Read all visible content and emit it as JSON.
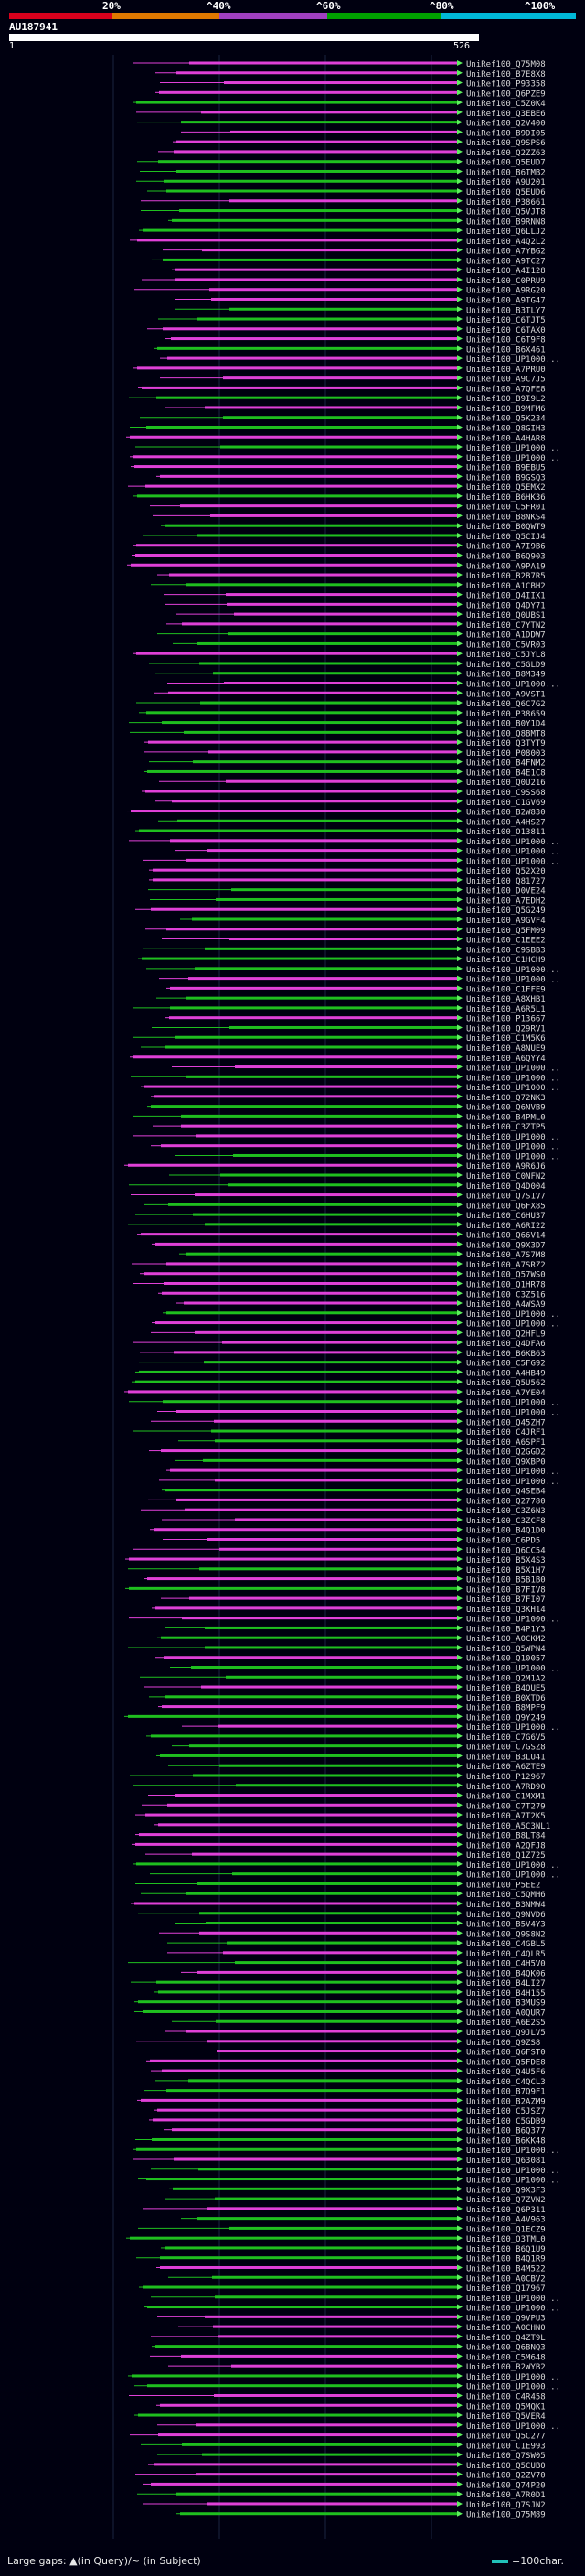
{
  "header": {
    "color_ticks": [
      "20%",
      "^40%",
      "^60%",
      "^80%",
      "^100%"
    ],
    "color_bands": [
      "#d8001c",
      "#e07800",
      "#a040c0",
      "#00a000",
      "#00b8d8"
    ],
    "query_label": "AU187941",
    "query_start": "1",
    "query_end": "526"
  },
  "footer": {
    "gap_legend": "Large gaps: ▲(in Query)/~ (in Subject)",
    "scale_legend": "=100char."
  },
  "colors": {
    "green": "#1fbf1f",
    "magenta": "#e040d8",
    "arrow_green": "#5ef05e",
    "text": "#d8d8d8",
    "background": "#000010"
  },
  "hits": [
    "UniRef100_Q75M08",
    "UniRef100_B7E8X8",
    "UniRef100_P93358",
    "UniRef100_Q6PZE9",
    "UniRef100_C5Z0K4",
    "UniRef100_Q3EBE6",
    "UniRef100_Q2V400",
    "UniRef100_B9DI05",
    "UniRef100_Q9SPS6",
    "UniRef100_Q2ZZ63",
    "UniRef100_Q5EUD7",
    "UniRef100_B6TMB2",
    "UniRef100_A9U201",
    "UniRef100_Q5EUD6",
    "UniRef100_P38661",
    "UniRef100_Q5VJT8",
    "UniRef100_B9RNN8",
    "UniRef100_Q6LLJ2",
    "UniRef100_A4Q2L2",
    "UniRef100_A7YBG2",
    "UniRef100_A9TC27",
    "UniRef100_A4I128",
    "UniRef100_C0PRU9",
    "UniRef100_A9RG20",
    "UniRef100_A9TG47",
    "UniRef100_B3TLY7",
    "UniRef100_C6TJT5",
    "UniRef100_C6TAX0",
    "UniRef100_C6T9F8",
    "UniRef100_B6X461",
    "UniRef100_UP1000...",
    "UniRef100_A7PRU0",
    "UniRef100_A9C7J5",
    "UniRef100_A7QFE8",
    "UniRef100_B9I9L2",
    "UniRef100_B9MFM6",
    "UniRef100_Q5K234",
    "UniRef100_Q8GIH3",
    "UniRef100_A4HAR8",
    "UniRef100_UP1000...",
    "UniRef100_UP1000...",
    "UniRef100_B9EBU5",
    "UniRef100_B9GSQ3",
    "UniRef100_Q5EMX2",
    "UniRef100_B6HK36",
    "UniRef100_C5FR01",
    "UniRef100_B8NKS4",
    "UniRef100_B0QWT9",
    "UniRef100_Q5CIJ4",
    "UniRef100_A7I9B6",
    "UniRef100_B6Q903",
    "UniRef100_A9PA19",
    "UniRef100_B2B7R5",
    "UniRef100_A1CBH2",
    "UniRef100_Q4IIX1",
    "UniRef100_Q4DY71",
    "UniRef100_Q0UBS1",
    "UniRef100_C7YTN2",
    "UniRef100_A1DDW7",
    "UniRef100_C5VR03",
    "UniRef100_C5JYL8",
    "UniRef100_C5GLD9",
    "UniRef100_B8M349",
    "UniRef100_UP1000...",
    "UniRef100_A9VST1",
    "UniRef100_Q6C7G2",
    "UniRef100_P38659",
    "UniRef100_B0Y1D4",
    "UniRef100_Q8BMT8",
    "UniRef100_Q3TYT9",
    "UniRef100_P08003",
    "UniRef100_B4FNM2",
    "UniRef100_B4E1C8",
    "UniRef100_Q0U216",
    "UniRef100_C9SS68",
    "UniRef100_C1GV69",
    "UniRef100_B2W830",
    "UniRef100_A4HS27",
    "UniRef100_O13811",
    "UniRef100_UP1000...",
    "UniRef100_UP1000...",
    "UniRef100_UP1000...",
    "UniRef100_Q52X20",
    "UniRef100_Q81727",
    "UniRef100_D0VE24",
    "UniRef100_A7EDH2",
    "UniRef100_Q5G249",
    "UniRef100_A9GVF4",
    "UniRef100_Q5FM09",
    "UniRef100_C1EEE2",
    "UniRef100_C9SBB3",
    "UniRef100_C1HCH9",
    "UniRef100_UP1000...",
    "UniRef100_UP1000...",
    "UniRef100_C1FFE9",
    "UniRef100_A8XHB1",
    "UniRef100_A6R5L1",
    "UniRef100_P13667",
    "UniRef100_Q29RV1",
    "UniRef100_C1M5K6",
    "UniRef100_A8NUE9",
    "UniRef100_A6QYY4",
    "UniRef100_UP1000...",
    "UniRef100_UP1000...",
    "UniRef100_UP1000...",
    "UniRef100_Q72NK3",
    "UniRef100_Q6NVB9",
    "UniRef100_B4PML0",
    "UniRef100_C3ZTP5",
    "UniRef100_UP1000...",
    "UniRef100_UP1000...",
    "UniRef100_UP1000...",
    "UniRef100_A9R6J6",
    "UniRef100_C0NFN2",
    "UniRef100_Q4D004",
    "UniRef100_Q7S1V7",
    "UniRef100_Q6FX85",
    "UniRef100_C6HU37",
    "UniRef100_A6RI22",
    "UniRef100_Q66V14",
    "UniRef100_Q9X3D7",
    "UniRef100_A7S7M8",
    "UniRef100_A7SRZ2",
    "UniRef100_Q57WS0",
    "UniRef100_Q1HR78",
    "UniRef100_C3Z516",
    "UniRef100_A4WSA9",
    "UniRef100_UP1000...",
    "UniRef100_UP1000...",
    "UniRef100_Q2HFL9",
    "UniRef100_Q4DFA6",
    "UniRef100_B6KB63",
    "UniRef100_C5FG92",
    "UniRef100_A4HB49",
    "UniRef100_Q5U562",
    "UniRef100_A7YE04",
    "UniRef100_UP1000...",
    "UniRef100_UP1000...",
    "UniRef100_Q45ZH7",
    "UniRef100_C4JRF1",
    "UniRef100_A6SPF1",
    "UniRef100_Q2GGD2",
    "UniRef100_Q9XBP0",
    "UniRef100_UP1000...",
    "UniRef100_UP1000...",
    "UniRef100_Q4SEB4",
    "UniRef100_Q27780",
    "UniRef100_C3Z6N3",
    "UniRef100_C3ZCF8",
    "UniRef100_B4Q1D0",
    "UniRef100_C6PD5",
    "UniRef100_Q6CC54",
    "UniRef100_B5X4S3",
    "UniRef100_B5X1H7",
    "UniRef100_B5B1B0",
    "UniRef100_B7FIV8",
    "UniRef100_B7FI07",
    "UniRef100_Q3KH14",
    "UniRef100_UP1000...",
    "UniRef100_B4P1Y3",
    "UniRef100_A0CKM2",
    "UniRef100_Q5WPN4",
    "UniRef100_Q10057",
    "UniRef100_UP1000...",
    "UniRef100_Q2M1A2",
    "UniRef100_B4QUE5",
    "UniRef100_B0XTD6",
    "UniRef100_B8MPF9",
    "UniRef100_Q9Y249",
    "UniRef100_UP1000...",
    "UniRef100_C7G6V5",
    "UniRef100_C7GSZ8",
    "UniRef100_B3LU41",
    "UniRef100_A6ZTE9",
    "UniRef100_P12967",
    "UniRef100_A7RD90",
    "UniRef100_C1MXM1",
    "UniRef100_C7T279",
    "UniRef100_A7T2K5",
    "UniRef100_A5C3NL1",
    "UniRef100_B8LT84",
    "UniRef100_A2QFJ8",
    "UniRef100_Q1Z725",
    "UniRef100_UP1000...",
    "UniRef100_UP1000...",
    "UniRef100_P5EE2",
    "UniRef100_C5QMH6",
    "UniRef100_B3NMW4",
    "UniRef100_Q9NVD6",
    "UniRef100_B5V4Y3",
    "UniRef100_Q9S8N2",
    "UniRef100_C4GBL5",
    "UniRef100_C4QLR5",
    "UniRef100_C4H5V0",
    "UniRef100_B4QK06",
    "UniRef100_B4LI27",
    "UniRef100_B4H155",
    "UniRef100_B3MUS9",
    "UniRef100_A0QUR7",
    "UniRef100_A6E2S5",
    "UniRef100_Q9JLV5",
    "UniRef100_Q9ZS8",
    "UniRef100_Q6FST0",
    "UniRef100_Q5FDE8",
    "UniRef100_Q4U5F6",
    "UniRef100_C4QCL3",
    "UniRef100_B7Q9F1",
    "UniRef100_B2AZM9",
    "UniRef100_C5JSZ7",
    "UniRef100_C5GDB9",
    "UniRef100_B6Q377",
    "UniRef100_B6KK48",
    "UniRef100_UP1000...",
    "UniRef100_Q63081",
    "UniRef100_UP1000...",
    "UniRef100_UP1000...",
    "UniRef100_Q9X3F3",
    "UniRef100_Q7ZVN2",
    "UniRef100_Q6P311",
    "UniRef100_A4V963",
    "UniRef100_Q1ECZ9",
    "UniRef100_Q3TML0",
    "UniRef100_B6Q1U9",
    "UniRef100_B4Q1R9",
    "UniRef100_B4M522",
    "UniRef100_A0CBV2",
    "UniRef100_Q17967",
    "UniRef100_UP1000...",
    "UniRef100_UP1000...",
    "UniRef100_Q9VPU3",
    "UniRef100_A0CHN0",
    "UniRef100_Q4ZT9L",
    "UniRef100_Q6BNQ3",
    "UniRef100_C5M648",
    "UniRef100_B2WYB2",
    "UniRef100_UP1000...",
    "UniRef100_UP1000...",
    "UniRef100_C4R458",
    "UniRef100_Q5MQK1",
    "UniRef100_Q5VER4",
    "UniRef100_UP1000...",
    "UniRef100_Q5C277",
    "UniRef100_C1E993",
    "UniRef100_Q7SW05",
    "UniRef100_Q5CUB0",
    "UniRef100_Q2ZV70",
    "UniRef100_Q74P20",
    "UniRef100_A7R0D1",
    "UniRef100_Q7SJN2",
    "UniRef100_Q75M89"
  ]
}
